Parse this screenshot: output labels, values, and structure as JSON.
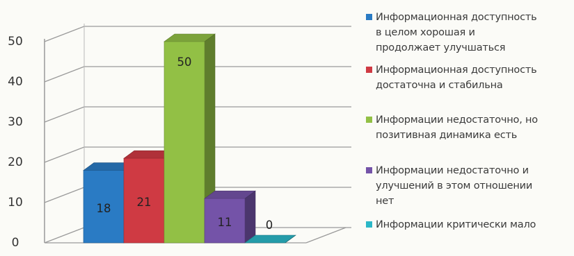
{
  "chart_data": {
    "type": "bar",
    "categories": [
      "Информационная доступность в целом хорошая и продолжает улучшаться",
      "Информационная доступность достаточна и стабильна",
      "Информации недостаточно, но позитивная динамика есть",
      "Информации недостаточно и улучшений в этом отношении нет",
      "Информации критически мало"
    ],
    "values": [
      18,
      21,
      50,
      11,
      0
    ],
    "colors": [
      "#2a7bc4",
      "#cf3a43",
      "#92c045",
      "#7453a8",
      "#2bb7c7"
    ],
    "ylim": [
      0,
      50
    ],
    "y_ticks": [
      0,
      10,
      20,
      30,
      40,
      50
    ],
    "grid": true,
    "three_d": true,
    "data_labels": true,
    "legend_position": "right"
  },
  "legend": [
    {
      "label": "Информационная доступность\nв целом хорошая и\nпродолжает улучшаться",
      "color": "#2a7bc4"
    },
    {
      "label": "Информационная доступность\nдостаточна и стабильна",
      "color": "#cf3a43"
    },
    {
      "label": "Информации недостаточно, но\nпозитивная динамика есть",
      "color": "#92c045"
    },
    {
      "label": "Информации недостаточно и\nулучшений в этом отношении\nнет",
      "color": "#7453a8"
    },
    {
      "label": "Информации критически мало",
      "color": "#2bb7c7"
    }
  ]
}
